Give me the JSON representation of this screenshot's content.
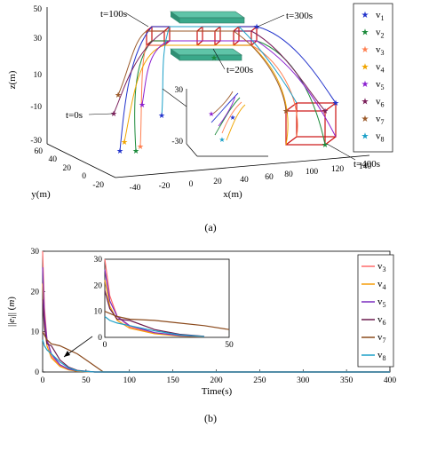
{
  "chart_data": [
    {
      "type": "line",
      "panel_label": "(a)",
      "axes": {
        "x_label": "x(m)",
        "y_label": "y(m)",
        "z_label": "z(m)"
      },
      "x_ticks": [
        "-40",
        "-20",
        "0",
        "20",
        "40",
        "60",
        "80",
        "100",
        "120",
        "140"
      ],
      "y_ticks": [
        "60",
        "40",
        "20",
        "0",
        "-20"
      ],
      "z_ticks": [
        "50",
        "30",
        "10",
        "-10",
        "-30"
      ],
      "inset_ticks": [
        "30",
        "-30"
      ],
      "time_labels": [
        "t=0s",
        "t=100s",
        "t=200s",
        "t=300s",
        "t=400s"
      ],
      "legend": [
        "v1",
        "v2",
        "v3",
        "v4",
        "v5",
        "v6",
        "v7",
        "v8"
      ],
      "series_colors": [
        "#2233cc",
        "#1b8a3a",
        "#ff7f50",
        "#f0a500",
        "#8b1fd0",
        "#7a1f5a",
        "#9b5a2a",
        "#1ca0c8"
      ]
    },
    {
      "type": "line",
      "panel_label": "(b)",
      "xlabel": "Time(s)",
      "ylabel": "||e_i|| (m)",
      "xlim": [
        0,
        400
      ],
      "ylim": [
        0,
        30
      ],
      "x_ticks": [
        "0",
        "50",
        "100",
        "150",
        "200",
        "250",
        "300",
        "350",
        "400"
      ],
      "y_ticks": [
        "0",
        "10",
        "20",
        "30"
      ],
      "inset": {
        "xlim": [
          0,
          50
        ],
        "ylim": [
          0,
          30
        ],
        "x_ticks": [
          "0",
          "50"
        ],
        "y_ticks": [
          "0",
          "10",
          "20",
          "30"
        ]
      },
      "series": [
        {
          "name": "v3",
          "color": "#ff6b6b",
          "x": [
            0,
            2,
            5,
            10,
            20,
            30,
            40,
            60
          ],
          "values": [
            30,
            16,
            8,
            4,
            1.5,
            0.6,
            0.2,
            0
          ]
        },
        {
          "name": "v4",
          "color": "#f59e0b",
          "x": [
            0,
            2,
            5,
            10,
            20,
            30,
            40,
            60
          ],
          "values": [
            22,
            12,
            6.5,
            3.5,
            1.4,
            0.5,
            0.2,
            0
          ]
        },
        {
          "name": "v5",
          "color": "#7b2cbf",
          "x": [
            0,
            2,
            5,
            10,
            20,
            30,
            40,
            60
          ],
          "values": [
            26,
            14,
            8,
            4.5,
            1.8,
            0.7,
            0.3,
            0
          ]
        },
        {
          "name": "v6",
          "color": "#6a1b4d",
          "x": [
            0,
            2,
            5,
            10,
            20,
            30,
            40,
            60
          ],
          "values": [
            18,
            11,
            7,
            6.5,
            3,
            1.2,
            0.4,
            0
          ]
        },
        {
          "name": "v7",
          "color": "#8b4a1c",
          "x": [
            0,
            5,
            10,
            20,
            30,
            40,
            50,
            70
          ],
          "values": [
            10,
            8,
            7,
            6.5,
            5.5,
            4.5,
            3,
            0
          ]
        },
        {
          "name": "v8",
          "color": "#1ca0c8",
          "x": [
            0,
            2,
            5,
            10,
            20,
            30,
            40,
            60
          ],
          "values": [
            8,
            6.5,
            5.5,
            4.5,
            2.5,
            1,
            0.3,
            0
          ]
        }
      ]
    }
  ]
}
